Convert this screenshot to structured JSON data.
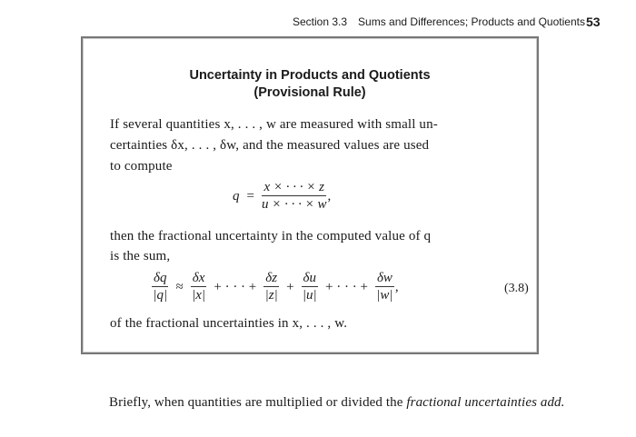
{
  "header": {
    "section": "Section 3.3",
    "section_title": "Sums and Differences; Products and Quotients",
    "page_number": "53"
  },
  "box": {
    "title_line1": "Uncertainty in Products and Quotients",
    "title_line2": "(Provisional Rule)",
    "para1_line1": "If several quantities x, . . . , w are measured with small un-",
    "para1_line2": "certainties δx, . . . , δw, and the measured values are used",
    "para1_line3": "to compute",
    "eq1": {
      "lhs": "q",
      "op": "=",
      "num": "x × · · · × z",
      "den": "u × · · · × w",
      "trail": ","
    },
    "para2_line1": "then the fractional uncertainty in the computed value of q",
    "para2_line2": "is the sum,",
    "eq2": {
      "lhs_num": "δq",
      "lhs_den": "|q|",
      "approx": "≈",
      "terms": [
        {
          "num": "δx",
          "den": "|x|"
        },
        {
          "num": "δz",
          "den": "|z|"
        },
        {
          "num": "δu",
          "den": "|u|"
        },
        {
          "num": "δw",
          "den": "|w|"
        }
      ],
      "plus_dots": "+ · · · +",
      "plus": "+",
      "trail": ","
    },
    "para3": "of the fractional uncertainties in x, . . . , w."
  },
  "equation_number": "(3.8)",
  "footer_text": {
    "plain": "Briefly, when quantities are multiplied or divided the ",
    "italic": "fractional uncertainties add."
  }
}
